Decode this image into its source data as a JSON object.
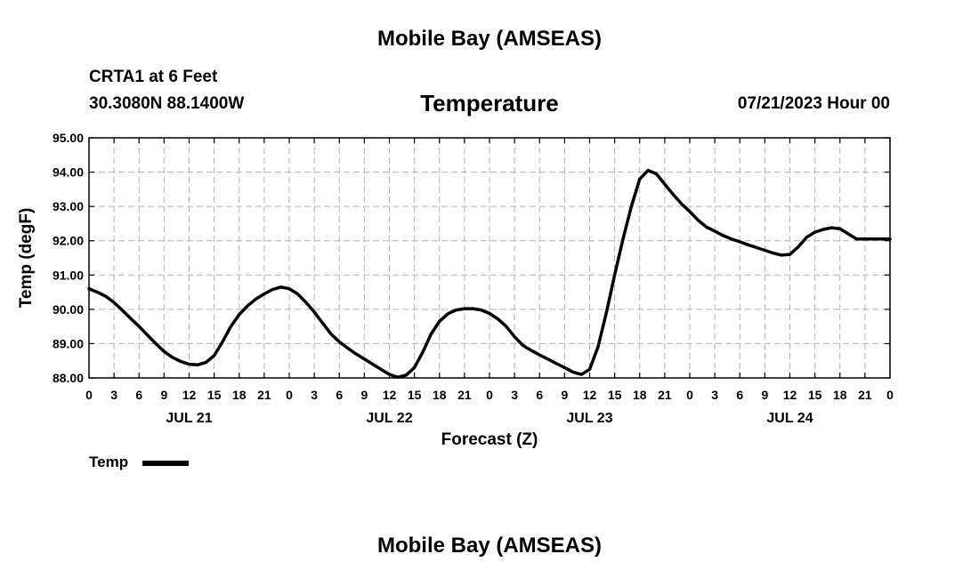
{
  "header": {
    "title": "Mobile Bay (AMSEAS)",
    "station": "CRTA1 at 6 Feet",
    "coords": "30.3080N  88.1400W",
    "chart_title": "Temperature",
    "run_time": "07/21/2023 Hour 00"
  },
  "footer": {
    "title": "Mobile Bay (AMSEAS)"
  },
  "chart_data": {
    "type": "line",
    "title": "Temperature",
    "xlabel": "Forecast (Z)",
    "ylabel": "Temp (degF)",
    "ylim": [
      88.0,
      95.0
    ],
    "xlim": [
      0,
      96
    ],
    "y_ticks": [
      "88.00",
      "89.00",
      "90.00",
      "91.00",
      "92.00",
      "93.00",
      "94.00",
      "95.00"
    ],
    "x_tick_hours": [
      0,
      3,
      6,
      9,
      12,
      15,
      18,
      21,
      24,
      27,
      30,
      33,
      36,
      39,
      42,
      45,
      48,
      51,
      54,
      57,
      60,
      63,
      66,
      69,
      72,
      75,
      78,
      81,
      84,
      87,
      90,
      93,
      96
    ],
    "x_tick_labels": [
      "0",
      "3",
      "6",
      "9",
      "12",
      "15",
      "18",
      "21",
      "0",
      "3",
      "6",
      "9",
      "12",
      "15",
      "18",
      "21",
      "0",
      "3",
      "6",
      "9",
      "12",
      "15",
      "18",
      "21",
      "0",
      "3",
      "6",
      "9",
      "12",
      "15",
      "18",
      "21",
      "0"
    ],
    "date_labels": [
      {
        "hour": 12,
        "label": "JUL 21"
      },
      {
        "hour": 36,
        "label": "JUL 22"
      },
      {
        "hour": 60,
        "label": "JUL 23"
      },
      {
        "hour": 84,
        "label": "JUL 24"
      }
    ],
    "grid": true,
    "legend": "bottom-left",
    "series": [
      {
        "name": "Temp",
        "color": "#000000",
        "x": [
          0,
          1,
          2,
          3,
          4,
          5,
          6,
          7,
          8,
          9,
          10,
          11,
          12,
          13,
          14,
          15,
          16,
          17,
          18,
          19,
          20,
          21,
          22,
          23,
          24,
          25,
          26,
          27,
          28,
          29,
          30,
          31,
          32,
          33,
          34,
          35,
          36,
          37,
          38,
          39,
          40,
          41,
          42,
          43,
          44,
          45,
          46,
          47,
          48,
          49,
          50,
          51,
          52,
          53,
          54,
          55,
          56,
          57,
          58,
          59,
          60,
          61,
          62,
          63,
          64,
          65,
          66,
          67,
          68,
          69,
          70,
          71,
          72,
          73,
          74,
          75,
          76,
          77,
          78,
          79,
          80,
          81,
          82,
          83,
          84,
          85,
          86,
          87,
          88,
          89,
          90,
          91,
          92,
          93,
          94,
          95,
          96
        ],
        "values": [
          90.6,
          90.5,
          90.38,
          90.2,
          89.97,
          89.73,
          89.5,
          89.25,
          89.0,
          88.77,
          88.6,
          88.48,
          88.4,
          88.38,
          88.45,
          88.65,
          89.05,
          89.5,
          89.85,
          90.1,
          90.3,
          90.45,
          90.58,
          90.65,
          90.6,
          90.45,
          90.2,
          89.92,
          89.6,
          89.28,
          89.05,
          88.87,
          88.7,
          88.55,
          88.4,
          88.25,
          88.1,
          88.02,
          88.08,
          88.3,
          88.75,
          89.28,
          89.65,
          89.87,
          89.98,
          90.02,
          90.02,
          89.98,
          89.88,
          89.72,
          89.5,
          89.2,
          88.95,
          88.8,
          88.67,
          88.55,
          88.42,
          88.3,
          88.17,
          88.1,
          88.25,
          88.9,
          89.9,
          91.0,
          92.05,
          93.0,
          93.8,
          94.05,
          93.95,
          93.65,
          93.35,
          93.08,
          92.85,
          92.6,
          92.4,
          92.28,
          92.15,
          92.05,
          91.97,
          91.88,
          91.8,
          91.72,
          91.64,
          91.58,
          91.6,
          91.82,
          92.1,
          92.25,
          92.33,
          92.38,
          92.35,
          92.2,
          92.05,
          92.05,
          92.05,
          92.05,
          92.05
        ]
      }
    ]
  }
}
